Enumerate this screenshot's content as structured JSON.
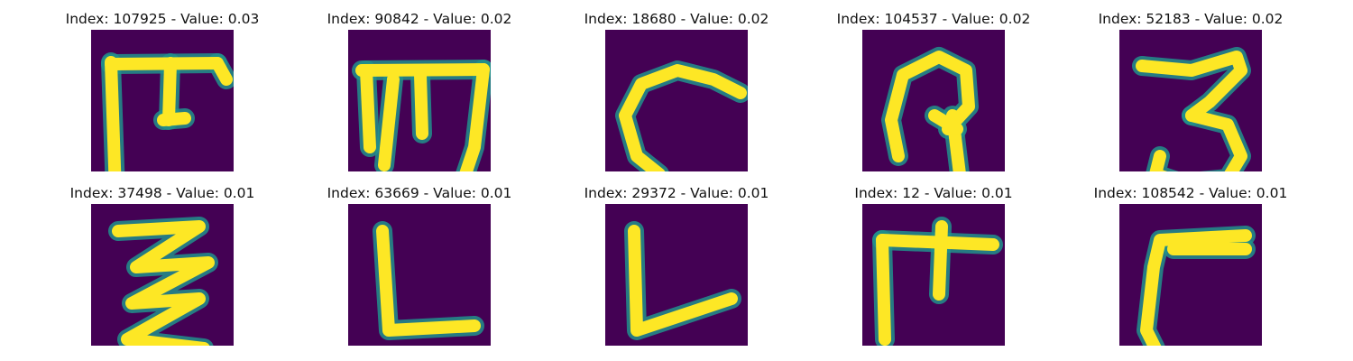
{
  "colors": {
    "background": "#440154",
    "ink": "#fde725",
    "edge": "#21918c"
  },
  "panels": [
    {
      "title": "Index: 107925 - Value: 0.03",
      "glyph": "glyph-pi-shape-icon",
      "strokes": [
        [
          [
            22,
            36
          ],
          [
            27,
            180
          ]
        ],
        [
          [
            22,
            38
          ],
          [
            140,
            37
          ]
        ],
        [
          [
            88,
            37
          ],
          [
            86,
            100
          ]
        ],
        [
          [
            80,
            100
          ],
          [
            104,
            98
          ]
        ],
        [
          [
            140,
            37
          ],
          [
            150,
            55
          ]
        ]
      ]
    },
    {
      "title": "Index: 90842 - Value: 0.02",
      "glyph": "glyph-m-shape-icon",
      "strokes": [
        [
          [
            15,
            45
          ],
          [
            150,
            44
          ]
        ],
        [
          [
            20,
            45
          ],
          [
            24,
            130
          ]
        ],
        [
          [
            50,
            55
          ],
          [
            40,
            150
          ]
        ],
        [
          [
            80,
            50
          ],
          [
            82,
            115
          ]
        ],
        [
          [
            150,
            44
          ],
          [
            140,
            130
          ],
          [
            130,
            160
          ]
        ]
      ]
    },
    {
      "title": "Index: 18680 - Value: 0.02",
      "glyph": "glyph-c-shape-icon",
      "strokes": [
        [
          [
            150,
            70
          ],
          [
            120,
            55
          ],
          [
            80,
            45
          ],
          [
            40,
            60
          ],
          [
            22,
            95
          ],
          [
            35,
            140
          ],
          [
            60,
            160
          ]
        ]
      ]
    },
    {
      "title": "Index: 104537 - Value: 0.02",
      "glyph": "glyph-p-shape-icon",
      "strokes": [
        [
          [
            40,
            140
          ],
          [
            32,
            100
          ],
          [
            45,
            50
          ],
          [
            85,
            30
          ],
          [
            115,
            45
          ],
          [
            118,
            85
          ],
          [
            95,
            110
          ]
        ],
        [
          [
            100,
            95
          ],
          [
            108,
            160
          ]
        ],
        [
          [
            80,
            95
          ],
          [
            105,
            110
          ]
        ]
      ]
    },
    {
      "title": "Index: 52183 - Value: 0.02",
      "glyph": "glyph-3-shape-icon",
      "strokes": [
        [
          [
            25,
            40
          ],
          [
            80,
            45
          ],
          [
            130,
            30
          ],
          [
            135,
            45
          ],
          [
            100,
            80
          ],
          [
            80,
            95
          ]
        ],
        [
          [
            80,
            95
          ],
          [
            120,
            105
          ],
          [
            135,
            140
          ],
          [
            120,
            165
          ],
          [
            70,
            170
          ],
          [
            40,
            160
          ],
          [
            45,
            140
          ]
        ]
      ]
    },
    {
      "title": "Index: 37498 - Value: 0.01",
      "glyph": "glyph-z-stack-shape-icon",
      "strokes": [
        [
          [
            30,
            30
          ],
          [
            120,
            25
          ],
          [
            50,
            70
          ],
          [
            130,
            65
          ],
          [
            45,
            110
          ],
          [
            120,
            105
          ],
          [
            40,
            150
          ],
          [
            125,
            160
          ]
        ]
      ]
    },
    {
      "title": "Index: 63669 - Value: 0.01",
      "glyph": "glyph-l-shape-icon",
      "strokes": [
        [
          [
            38,
            30
          ],
          [
            45,
            140
          ],
          [
            140,
            135
          ]
        ]
      ]
    },
    {
      "title": "Index: 29372 - Value: 0.01",
      "glyph": "glyph-l-angled-shape-icon",
      "strokes": [
        [
          [
            32,
            30
          ],
          [
            35,
            140
          ],
          [
            140,
            105
          ]
        ]
      ]
    },
    {
      "title": "Index: 12 - Value: 0.01",
      "glyph": "glyph-h-shape-icon",
      "strokes": [
        [
          [
            22,
            40
          ],
          [
            145,
            45
          ]
        ],
        [
          [
            22,
            40
          ],
          [
            25,
            150
          ]
        ],
        [
          [
            88,
            25
          ],
          [
            85,
            100
          ]
        ]
      ]
    },
    {
      "title": "Index: 108542 - Value: 0.01",
      "glyph": "glyph-7-reversed-shape-icon",
      "strokes": [
        [
          [
            140,
            35
          ],
          [
            45,
            40
          ],
          [
            38,
            70
          ],
          [
            30,
            140
          ],
          [
            40,
            160
          ]
        ],
        [
          [
            60,
            50
          ],
          [
            140,
            50
          ]
        ]
      ]
    }
  ]
}
